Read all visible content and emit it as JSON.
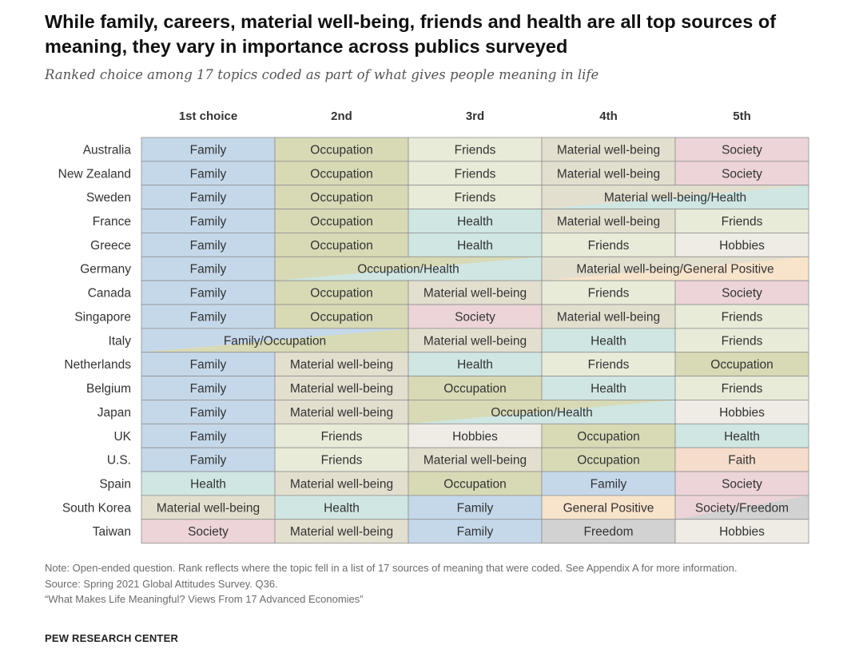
{
  "title": "While family, careers, material well-being, friends and health are all top sources of meaning, they vary in importance across publics surveyed",
  "subtitle": "Ranked choice among 17 topics coded as part of what gives people meaning in life",
  "colors": {
    "Family": "#c5d8ea",
    "Occupation": "#d8dab6",
    "Friends": "#e8ebd8",
    "Material well-being": "#e3dfcf",
    "Society": "#ecd4d8",
    "Health": "#cfe6e2",
    "Hobbies": "#efebe5",
    "General Positive": "#f8e3cb",
    "Faith": "#f5dccb",
    "Freedom": "#d2d2d2"
  },
  "chart_data": {
    "type": "table",
    "columns": [
      "1st choice",
      "2nd",
      "3rd",
      "4th",
      "5th"
    ],
    "rows": [
      {
        "country": "Australia",
        "cells": [
          {
            "label": "Family",
            "span": 1
          },
          {
            "label": "Occupation",
            "span": 1
          },
          {
            "label": "Friends",
            "span": 1
          },
          {
            "label": "Material well-being",
            "span": 1
          },
          {
            "label": "Society",
            "span": 1
          }
        ]
      },
      {
        "country": "New Zealand",
        "cells": [
          {
            "label": "Family",
            "span": 1
          },
          {
            "label": "Occupation",
            "span": 1
          },
          {
            "label": "Friends",
            "span": 1
          },
          {
            "label": "Material well-being",
            "span": 1
          },
          {
            "label": "Society",
            "span": 1
          }
        ]
      },
      {
        "country": "Sweden",
        "cells": [
          {
            "label": "Family",
            "span": 1
          },
          {
            "label": "Occupation",
            "span": 1
          },
          {
            "label": "Friends",
            "span": 1
          },
          {
            "label": "Material well-being/Health",
            "span": 2
          }
        ]
      },
      {
        "country": "France",
        "cells": [
          {
            "label": "Family",
            "span": 1
          },
          {
            "label": "Occupation",
            "span": 1
          },
          {
            "label": "Health",
            "span": 1
          },
          {
            "label": "Material well-being",
            "span": 1
          },
          {
            "label": "Friends",
            "span": 1
          }
        ]
      },
      {
        "country": "Greece",
        "cells": [
          {
            "label": "Family",
            "span": 1
          },
          {
            "label": "Occupation",
            "span": 1
          },
          {
            "label": "Health",
            "span": 1
          },
          {
            "label": "Friends",
            "span": 1
          },
          {
            "label": "Hobbies",
            "span": 1
          }
        ]
      },
      {
        "country": "Germany",
        "cells": [
          {
            "label": "Family",
            "span": 1
          },
          {
            "label": "Occupation/Health",
            "span": 2
          },
          {
            "label": "Material well-being/General Positive",
            "span": 2
          }
        ]
      },
      {
        "country": "Canada",
        "cells": [
          {
            "label": "Family",
            "span": 1
          },
          {
            "label": "Occupation",
            "span": 1
          },
          {
            "label": "Material well-being",
            "span": 1
          },
          {
            "label": "Friends",
            "span": 1
          },
          {
            "label": "Society",
            "span": 1
          }
        ]
      },
      {
        "country": "Singapore",
        "cells": [
          {
            "label": "Family",
            "span": 1
          },
          {
            "label": "Occupation",
            "span": 1
          },
          {
            "label": "Society",
            "span": 1
          },
          {
            "label": "Material well-being",
            "span": 1
          },
          {
            "label": "Friends",
            "span": 1
          }
        ]
      },
      {
        "country": "Italy",
        "cells": [
          {
            "label": "Family/Occupation",
            "span": 2
          },
          {
            "label": "Material well-being",
            "span": 1
          },
          {
            "label": "Health",
            "span": 1
          },
          {
            "label": "Friends",
            "span": 1
          }
        ]
      },
      {
        "country": "Netherlands",
        "cells": [
          {
            "label": "Family",
            "span": 1
          },
          {
            "label": "Material well-being",
            "span": 1
          },
          {
            "label": "Health",
            "span": 1
          },
          {
            "label": "Friends",
            "span": 1
          },
          {
            "label": "Occupation",
            "span": 1
          }
        ]
      },
      {
        "country": "Belgium",
        "cells": [
          {
            "label": "Family",
            "span": 1
          },
          {
            "label": "Material well-being",
            "span": 1
          },
          {
            "label": "Occupation",
            "span": 1
          },
          {
            "label": "Health",
            "span": 1
          },
          {
            "label": "Friends",
            "span": 1
          }
        ]
      },
      {
        "country": "Japan",
        "cells": [
          {
            "label": "Family",
            "span": 1
          },
          {
            "label": "Material well-being",
            "span": 1
          },
          {
            "label": "Occupation/Health",
            "span": 2
          },
          {
            "label": "Hobbies",
            "span": 1
          }
        ]
      },
      {
        "country": "UK",
        "cells": [
          {
            "label": "Family",
            "span": 1
          },
          {
            "label": "Friends",
            "span": 1
          },
          {
            "label": "Hobbies",
            "span": 1
          },
          {
            "label": "Occupation",
            "span": 1
          },
          {
            "label": "Health",
            "span": 1
          }
        ]
      },
      {
        "country": "U.S.",
        "cells": [
          {
            "label": "Family",
            "span": 1
          },
          {
            "label": "Friends",
            "span": 1
          },
          {
            "label": "Material well-being",
            "span": 1
          },
          {
            "label": "Occupation",
            "span": 1
          },
          {
            "label": "Faith",
            "span": 1
          }
        ]
      },
      {
        "country": "Spain",
        "cells": [
          {
            "label": "Health",
            "span": 1
          },
          {
            "label": "Material well-being",
            "span": 1
          },
          {
            "label": "Occupation",
            "span": 1
          },
          {
            "label": "Family",
            "span": 1
          },
          {
            "label": "Society",
            "span": 1
          }
        ]
      },
      {
        "country": "South Korea",
        "cells": [
          {
            "label": "Material well-being",
            "span": 1
          },
          {
            "label": "Health",
            "span": 1
          },
          {
            "label": "Family",
            "span": 1
          },
          {
            "label": "General Positive",
            "span": 1
          },
          {
            "label": "Society/Freedom",
            "span": 1
          }
        ]
      },
      {
        "country": "Taiwan",
        "cells": [
          {
            "label": "Society",
            "span": 1
          },
          {
            "label": "Material well-being",
            "span": 1
          },
          {
            "label": "Family",
            "span": 1
          },
          {
            "label": "Freedom",
            "span": 1
          },
          {
            "label": "Hobbies",
            "span": 1
          }
        ]
      }
    ]
  },
  "note": "Note: Open-ended question. Rank reflects where the topic fell in a list of 17 sources of meaning that were coded. See Appendix A for more information.",
  "source": "Source: Spring 2021 Global Attitudes Survey. Q36.",
  "report": "“What Makes Life Meaningful? Views From 17 Advanced Economies”",
  "brand": "PEW RESEARCH CENTER"
}
